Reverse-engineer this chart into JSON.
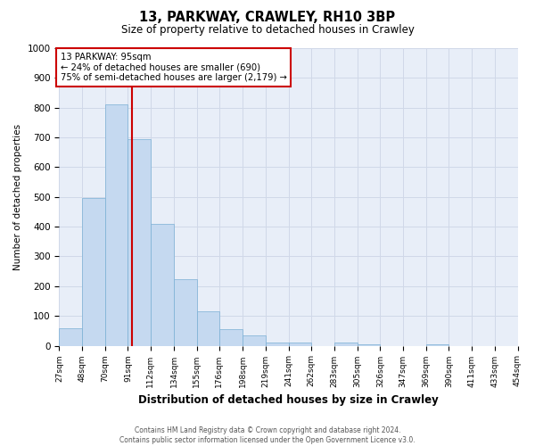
{
  "title": "13, PARKWAY, CRAWLEY, RH10 3BP",
  "subtitle": "Size of property relative to detached houses in Crawley",
  "xlabel": "Distribution of detached houses by size in Crawley",
  "ylabel": "Number of detached properties",
  "bin_edges": [
    27,
    48,
    70,
    91,
    112,
    134,
    155,
    176,
    198,
    219,
    241,
    262,
    283,
    305,
    326,
    347,
    369,
    390,
    411,
    433,
    454
  ],
  "bar_heights": [
    60,
    495,
    810,
    695,
    410,
    225,
    115,
    57,
    35,
    10,
    10,
    0,
    10,
    5,
    0,
    0,
    5,
    0,
    0,
    0
  ],
  "bar_color": "#c5d9f0",
  "bar_edge_color": "#7aafd4",
  "grid_color": "#d0d8e8",
  "background_color": "#e8eef8",
  "property_line_x": 95,
  "property_line_color": "#cc0000",
  "annotation_text": "13 PARKWAY: 95sqm\n← 24% of detached houses are smaller (690)\n75% of semi-detached houses are larger (2,179) →",
  "annotation_box_color": "#ffffff",
  "annotation_box_edge": "#cc0000",
  "ylim": [
    0,
    1000
  ],
  "yticks": [
    0,
    100,
    200,
    300,
    400,
    500,
    600,
    700,
    800,
    900,
    1000
  ],
  "tick_labels": [
    "27sqm",
    "48sqm",
    "70sqm",
    "91sqm",
    "112sqm",
    "134sqm",
    "155sqm",
    "176sqm",
    "198sqm",
    "219sqm",
    "241sqm",
    "262sqm",
    "283sqm",
    "305sqm",
    "326sqm",
    "347sqm",
    "369sqm",
    "390sqm",
    "411sqm",
    "433sqm",
    "454sqm"
  ],
  "footer_line1": "Contains HM Land Registry data © Crown copyright and database right 2024.",
  "footer_line2": "Contains public sector information licensed under the Open Government Licence v3.0."
}
